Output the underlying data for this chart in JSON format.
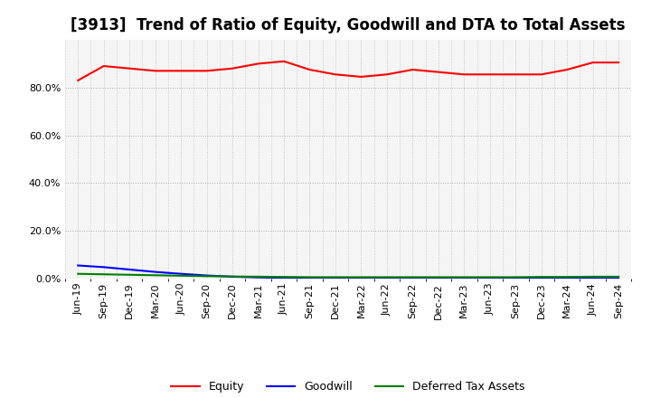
{
  "title": "[3913]  Trend of Ratio of Equity, Goodwill and DTA to Total Assets",
  "x_labels": [
    "Jun-19",
    "Sep-19",
    "Dec-19",
    "Mar-20",
    "Jun-20",
    "Sep-20",
    "Dec-20",
    "Mar-21",
    "Jun-21",
    "Sep-21",
    "Dec-21",
    "Mar-22",
    "Jun-22",
    "Sep-22",
    "Dec-22",
    "Mar-23",
    "Jun-23",
    "Sep-23",
    "Dec-23",
    "Mar-24",
    "Jun-24",
    "Sep-24"
  ],
  "equity": [
    0.83,
    0.89,
    0.88,
    0.87,
    0.87,
    0.87,
    0.88,
    0.9,
    0.91,
    0.875,
    0.855,
    0.845,
    0.855,
    0.875,
    0.865,
    0.855,
    0.855,
    0.855,
    0.855,
    0.875,
    0.905,
    0.905
  ],
  "goodwill": [
    0.055,
    0.048,
    0.038,
    0.028,
    0.02,
    0.013,
    0.008,
    0.005,
    0.003,
    0.002,
    0.001,
    0.001,
    0.001,
    0.001,
    0.001,
    0.001,
    0.001,
    0.001,
    0.001,
    0.001,
    0.001,
    0.001
  ],
  "dta": [
    0.02,
    0.018,
    0.016,
    0.014,
    0.012,
    0.01,
    0.009,
    0.008,
    0.007,
    0.006,
    0.006,
    0.006,
    0.006,
    0.006,
    0.006,
    0.006,
    0.006,
    0.006,
    0.007,
    0.007,
    0.008,
    0.008
  ],
  "equity_color": "#ff0000",
  "goodwill_color": "#0000ff",
  "dta_color": "#008000",
  "ylim_min": 0.0,
  "ylim_max": 1.0,
  "yticks": [
    0.0,
    0.2,
    0.4,
    0.6,
    0.8
  ],
  "background_color": "#ffffff",
  "plot_bg_color": "#f5f5f5",
  "grid_color": "#aaaaaa",
  "title_fontsize": 12,
  "axis_fontsize": 8,
  "legend_labels": [
    "Equity",
    "Goodwill",
    "Deferred Tax Assets"
  ]
}
